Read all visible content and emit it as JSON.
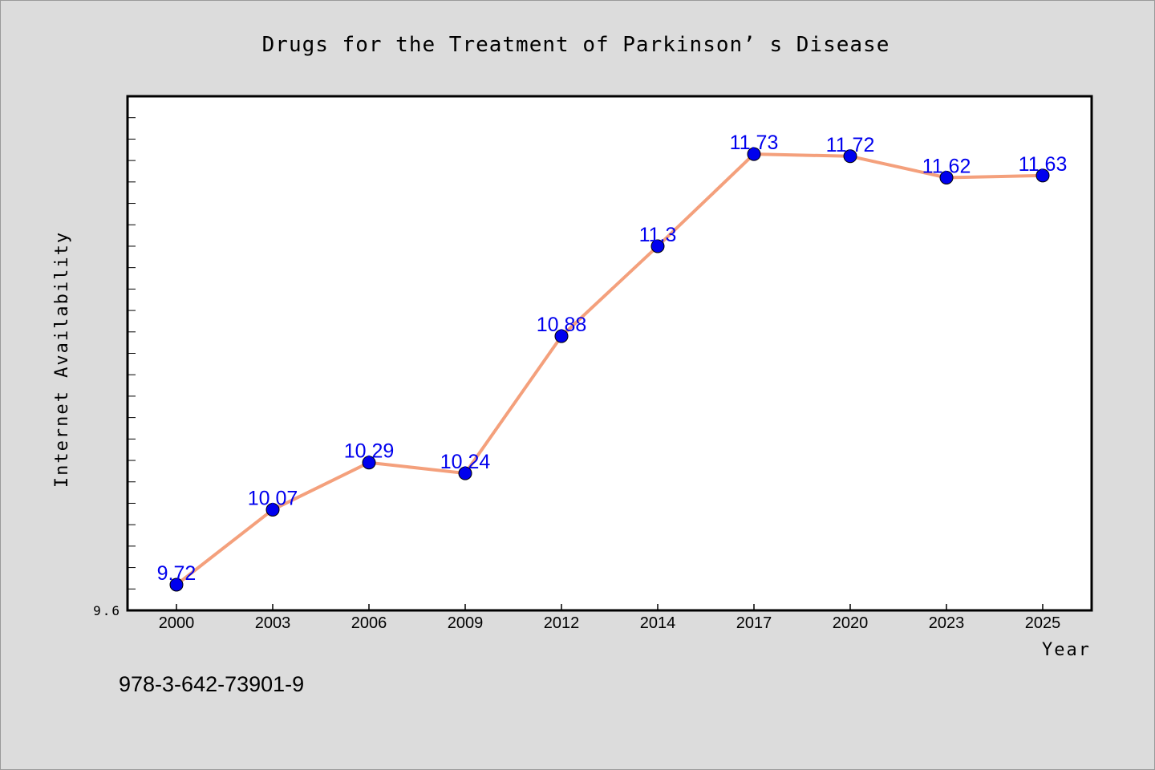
{
  "chart_data": {
    "type": "line",
    "title": "Drugs for the Treatment of Parkinson’ s Disease",
    "xlabel": "Year",
    "ylabel": "Internet Availability",
    "categories": [
      "2000",
      "2003",
      "2006",
      "2009",
      "2012",
      "2014",
      "2017",
      "2020",
      "2023",
      "2025"
    ],
    "series": [
      {
        "values": [
          9.72,
          10.07,
          10.29,
          10.24,
          10.88,
          11.3,
          11.73,
          11.72,
          11.62,
          11.63
        ],
        "labels": [
          "9.72",
          "10.07",
          "10.29",
          "10.24",
          "10.88",
          "11.3",
          "11.73",
          "11.72",
          "11.62",
          "11.63"
        ]
      }
    ],
    "ylim": [
      9.6,
      12.0
    ],
    "ytick_labels": [
      "9.6"
    ],
    "grid": false,
    "legend": "none",
    "line_color": "#f4a07c",
    "marker_color": "#0000ee",
    "label_color": "#0000ee"
  },
  "footer": {
    "isbn": "978-3-642-73901-9"
  }
}
